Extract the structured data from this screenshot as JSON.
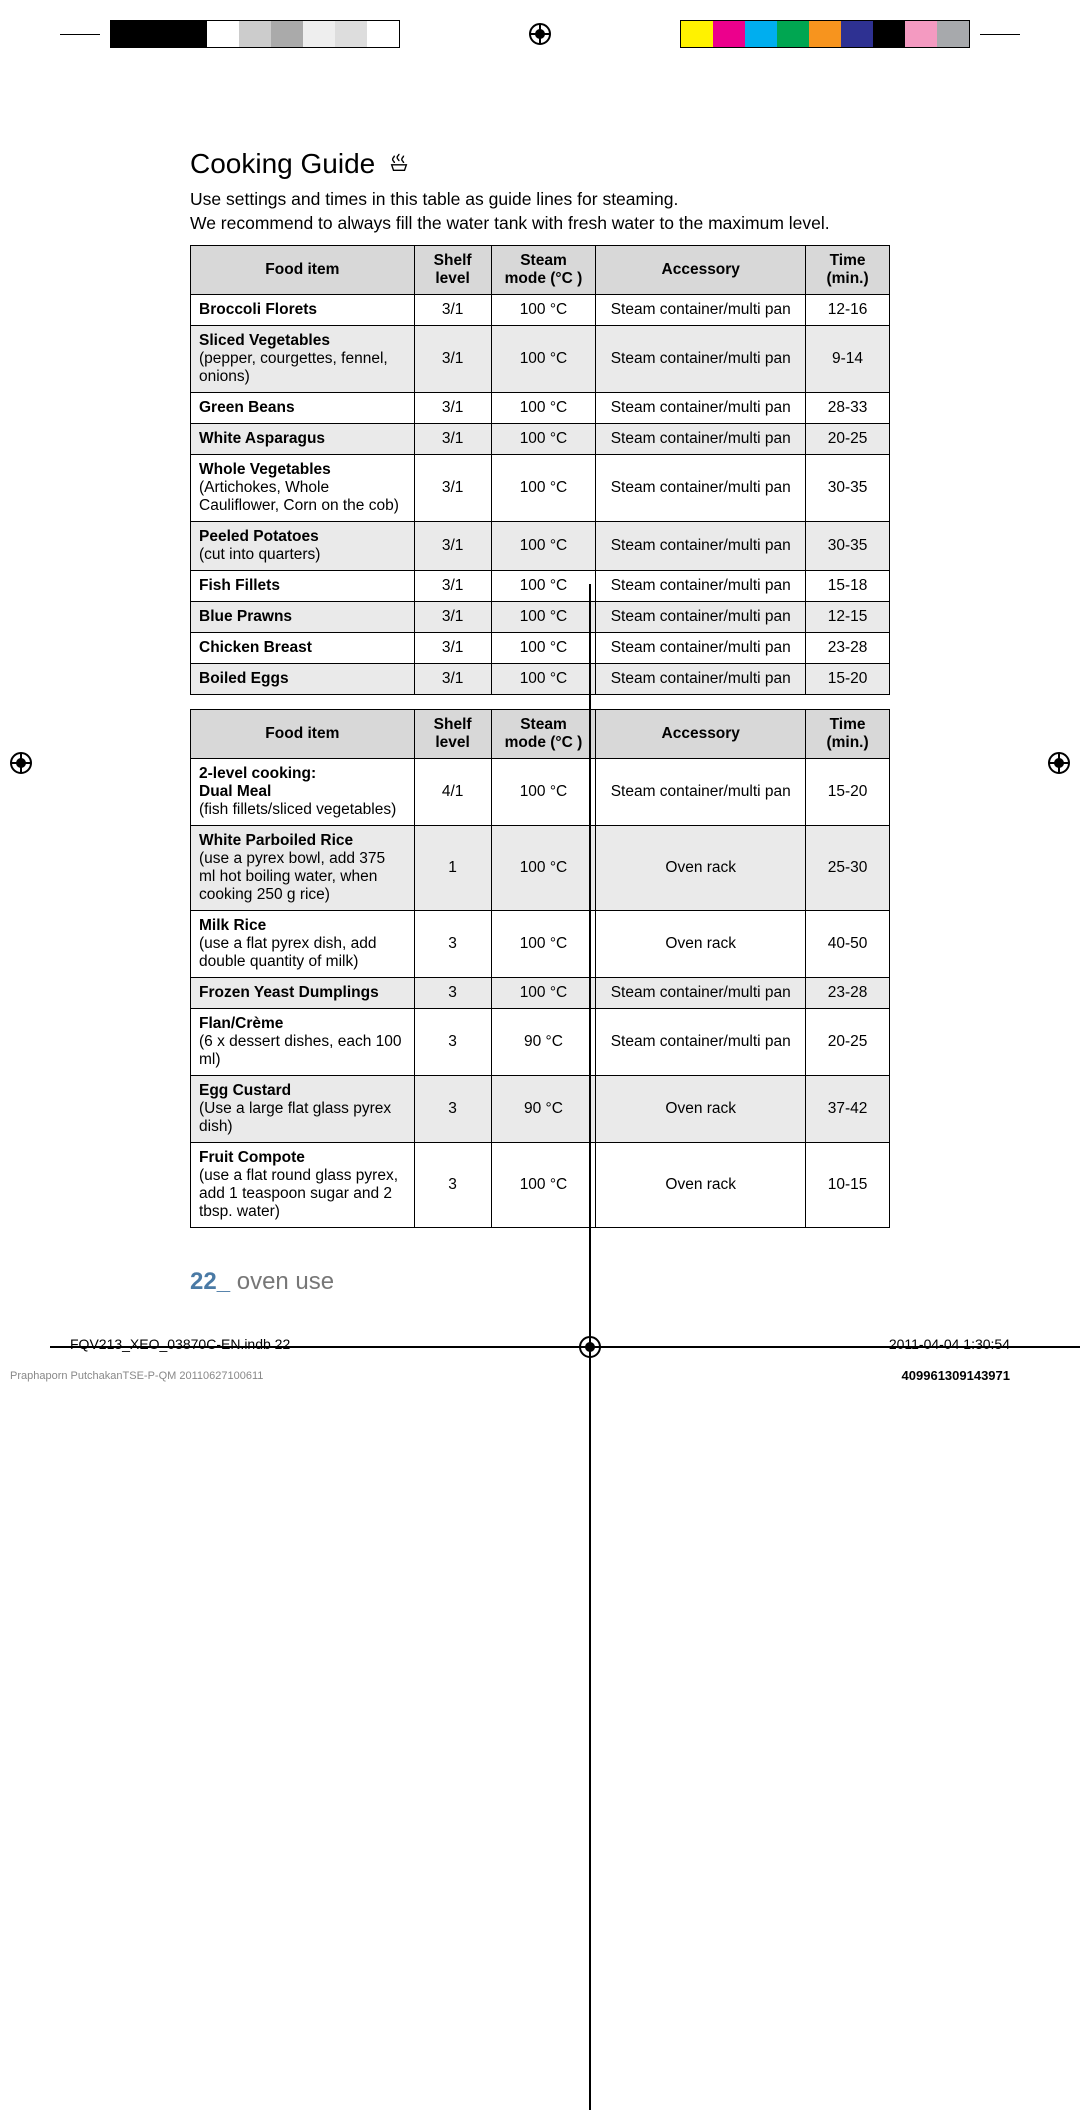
{
  "colorbar_left": [
    "#000000",
    "#000000",
    "#000000",
    "#ffffff",
    "#cccccc",
    "#aaaaaa",
    "#eeeeee",
    "#dddddd",
    "#ffffff"
  ],
  "colorbar_right": [
    "#fff200",
    "#ec008c",
    "#00aeef",
    "#00a651",
    "#f7941e",
    "#2e3192",
    "#000000",
    "#f49ac1",
    "#a7a9ac"
  ],
  "page": {
    "title": "Cooking Guide",
    "intro_line1": "Use settings and times in this table as guide lines for steaming.",
    "intro_line2": "We recommend to always fill the water tank with fresh water to the maximum level."
  },
  "table1": {
    "headers": [
      "Food item",
      "Shelf level",
      "Steam mode (°C )",
      "Accessory",
      "Time (min.)"
    ],
    "rows": [
      {
        "name": "Broccoli Florets",
        "note": "",
        "shelf": "3/1",
        "mode": "100 °C",
        "acc": "Steam container/multi pan",
        "time": "12-16",
        "shade": false
      },
      {
        "name": "Sliced Vegetables",
        "note": "(pepper, courgettes, fennel, onions)",
        "shelf": "3/1",
        "mode": "100 °C",
        "acc": "Steam container/multi pan",
        "time": "9-14",
        "shade": true
      },
      {
        "name": "Green Beans",
        "note": "",
        "shelf": "3/1",
        "mode": "100 °C",
        "acc": "Steam container/multi pan",
        "time": "28-33",
        "shade": false
      },
      {
        "name": "White Asparagus",
        "note": "",
        "shelf": "3/1",
        "mode": "100 °C",
        "acc": "Steam container/multi pan",
        "time": "20-25",
        "shade": true
      },
      {
        "name": "Whole Vegetables",
        "note": "(Artichokes, Whole Cauliflower, Corn on the cob)",
        "shelf": "3/1",
        "mode": "100 °C",
        "acc": "Steam container/multi pan",
        "time": "30-35",
        "shade": false
      },
      {
        "name": "Peeled Potatoes",
        "note": "(cut into quarters)",
        "shelf": "3/1",
        "mode": "100 °C",
        "acc": "Steam container/multi pan",
        "time": "30-35",
        "shade": true
      },
      {
        "name": "Fish Fillets",
        "note": "",
        "shelf": "3/1",
        "mode": "100 °C",
        "acc": "Steam container/multi pan",
        "time": "15-18",
        "shade": false
      },
      {
        "name": "Blue Prawns",
        "note": "",
        "shelf": "3/1",
        "mode": "100 °C",
        "acc": "Steam container/multi pan",
        "time": "12-15",
        "shade": true
      },
      {
        "name": "Chicken Breast",
        "note": "",
        "shelf": "3/1",
        "mode": "100 °C",
        "acc": "Steam container/multi pan",
        "time": "23-28",
        "shade": false
      },
      {
        "name": "Boiled Eggs",
        "note": "",
        "shelf": "3/1",
        "mode": "100 °C",
        "acc": "Steam container/multi pan",
        "time": "15-20",
        "shade": true
      }
    ]
  },
  "table2": {
    "headers": [
      "Food item",
      "Shelf level",
      "Steam mode (°C )",
      "Accessory",
      "Time (min.)"
    ],
    "rows": [
      {
        "name": "2-level cooking:\nDual Meal",
        "note": "(fish fillets/sliced vegetables)",
        "shelf": "4/1",
        "mode": "100 °C",
        "acc": "Steam container/multi pan",
        "time": "15-20",
        "shade": false
      },
      {
        "name": "White Parboiled Rice",
        "note": "(use a pyrex bowl, add 375 ml hot boiling water, when cooking 250 g rice)",
        "shelf": "1",
        "mode": "100 °C",
        "acc": "Oven rack",
        "time": "25-30",
        "shade": true
      },
      {
        "name": "Milk Rice",
        "note": "(use a flat pyrex dish, add double quantity of milk)",
        "shelf": "3",
        "mode": "100 °C",
        "acc": "Oven rack",
        "time": "40-50",
        "shade": false
      },
      {
        "name": "Frozen Yeast Dumplings",
        "note": "",
        "shelf": "3",
        "mode": "100 °C",
        "acc": "Steam container/multi pan",
        "time": "23-28",
        "shade": true
      },
      {
        "name": "Flan/Crème",
        "note": "(6 x dessert dishes, each 100 ml)",
        "shelf": "3",
        "mode": "90 °C",
        "acc": "Steam container/multi pan",
        "time": "20-25",
        "shade": false
      },
      {
        "name": "Egg Custard",
        "note": "(Use a large flat glass pyrex dish)",
        "shelf": "3",
        "mode": "90 °C",
        "acc": "Oven rack",
        "time": "37-42",
        "shade": true
      },
      {
        "name": "Fruit Compote",
        "note": "(use a flat round glass pyrex, add 1 teaspoon sugar and 2 tbsp. water)",
        "shelf": "3",
        "mode": "100 °C",
        "acc": "Oven rack",
        "time": "10-15",
        "shade": false
      }
    ]
  },
  "footer": {
    "page_number": "22_",
    "section": "oven use",
    "indb": "FQV213_XEO_03870C-EN.indb   22",
    "timestamp": "2011-04-04   1:30:54",
    "docline": "Praphaporn PutchakanTSE-P-QM  20110627100611",
    "docnum": "409961309143971"
  },
  "col_widths": {
    "food": "32%",
    "shelf": "11%",
    "mode": "15%",
    "acc": "30%",
    "time": "12%"
  }
}
